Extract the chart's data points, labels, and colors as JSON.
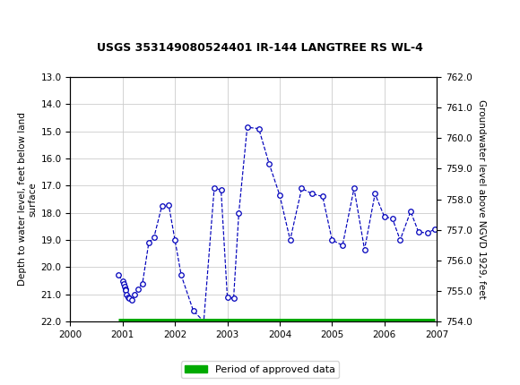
{
  "title": "USGS 353149080524401 IR-144 LANGTREE RS WL-4",
  "usgs_header_color": "#1a6b3c",
  "ylabel_left": "Depth to water level, feet below land\nsurface",
  "ylabel_right": "Groundwater level above NGVD 1929, feet",
  "xlim": [
    2000,
    2007
  ],
  "ylim_left_top": 13.0,
  "ylim_left_bottom": 22.0,
  "ylim_right_top": 762.0,
  "ylim_right_bottom": 754.0,
  "xticks": [
    2000,
    2001,
    2002,
    2003,
    2004,
    2005,
    2006,
    2007
  ],
  "yticks_left": [
    13.0,
    14.0,
    15.0,
    16.0,
    17.0,
    18.0,
    19.0,
    20.0,
    21.0,
    22.0
  ],
  "yticks_right": [
    762.0,
    761.0,
    760.0,
    759.0,
    758.0,
    757.0,
    756.0,
    755.0,
    754.0
  ],
  "line_color": "#0000bb",
  "line_style": "--",
  "marker_style": "o",
  "marker_face": "white",
  "marker_edge": "#0000bb",
  "marker_size": 4,
  "approved_color": "#00aa00",
  "approved_label": "Period of approved data",
  "background_color": "#ffffff",
  "grid_color": "#cccccc",
  "data_x": [
    2000.92,
    2001.0,
    2001.02,
    2001.04,
    2001.05,
    2001.06,
    2001.08,
    2001.1,
    2001.13,
    2001.18,
    2001.22,
    2001.3,
    2001.38,
    2001.5,
    2001.6,
    2001.75,
    2001.88,
    2002.0,
    2002.12,
    2002.35,
    2002.55,
    2002.75,
    2002.88,
    2003.0,
    2003.12,
    2003.22,
    2003.38,
    2003.6,
    2003.8,
    2004.0,
    2004.2,
    2004.42,
    2004.62,
    2004.82,
    2005.0,
    2005.2,
    2005.42,
    2005.62,
    2005.82,
    2006.0,
    2006.15,
    2006.3,
    2006.5,
    2006.65,
    2006.82,
    2006.96
  ],
  "data_y": [
    20.3,
    20.5,
    20.6,
    20.7,
    20.8,
    20.85,
    21.0,
    21.1,
    21.15,
    21.2,
    21.0,
    20.8,
    20.6,
    19.1,
    18.9,
    17.75,
    17.7,
    19.0,
    20.3,
    21.6,
    22.0,
    17.1,
    17.15,
    21.1,
    21.15,
    18.0,
    14.85,
    14.9,
    16.2,
    17.35,
    19.0,
    17.1,
    17.3,
    17.4,
    19.0,
    19.2,
    17.1,
    19.35,
    17.3,
    18.15,
    18.2,
    19.0,
    17.95,
    18.7,
    18.75,
    18.6
  ],
  "approved_x_start": 2000.92,
  "approved_x_end": 2006.96
}
